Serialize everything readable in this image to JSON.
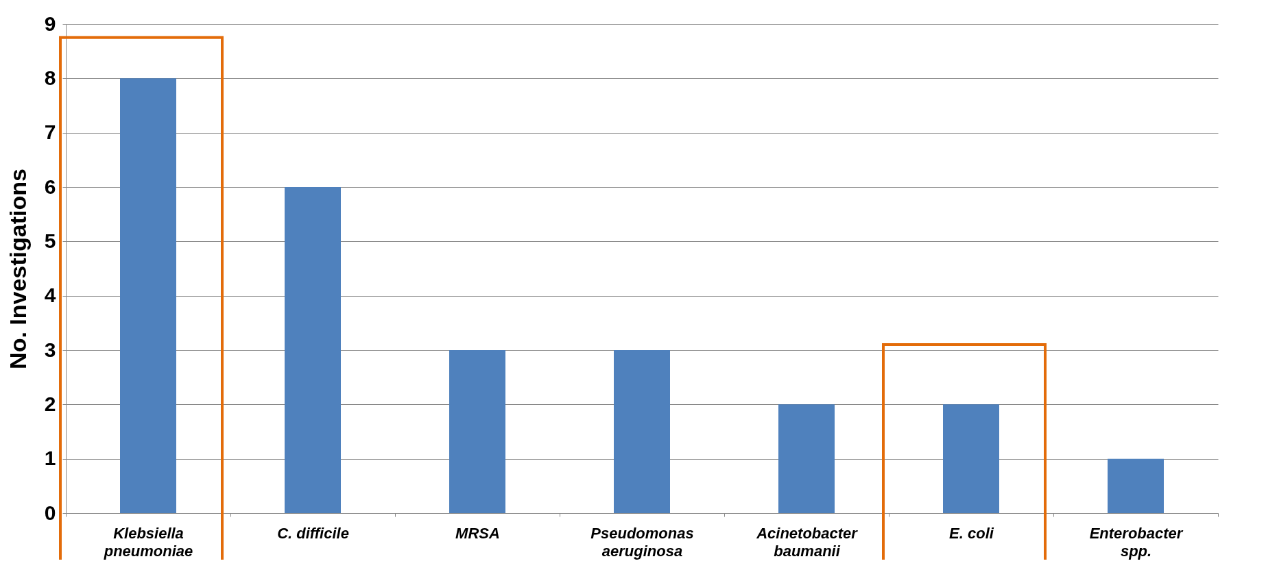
{
  "chart_data": {
    "type": "bar",
    "ylabel": "No. Investigations",
    "categories": [
      "Klebsiella\npneumoniae",
      "C. difficile",
      "MRSA",
      "Pseudomonas\naeruginosa",
      "Acinetobacter\nbaumanii",
      "E. coli",
      "Enterobacter\nspp."
    ],
    "values": [
      8,
      6,
      3,
      3,
      2,
      2,
      1
    ],
    "color": "#4f81bd",
    "ylim": [
      0,
      9
    ],
    "yticks": [
      0,
      1,
      2,
      3,
      4,
      5,
      6,
      7,
      8,
      9
    ],
    "grid": "y"
  }
}
